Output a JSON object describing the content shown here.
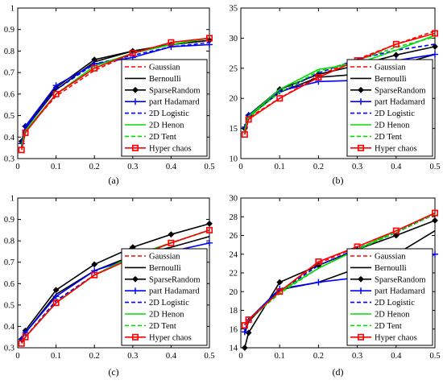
{
  "series_styles": [
    {
      "name": "Gaussian",
      "color": "#ff0000",
      "dash": "5,3",
      "marker": "none"
    },
    {
      "name": "Bernoulli",
      "color": "#000000",
      "dash": "none",
      "marker": "none"
    },
    {
      "name": "SparseRandom",
      "color": "#000000",
      "dash": "none",
      "marker": "diamond"
    },
    {
      "name": "part Hadamard",
      "color": "#0000ff",
      "dash": "none",
      "marker": "plus"
    },
    {
      "name": "2D Logistic",
      "color": "#0000ff",
      "dash": "5,3",
      "marker": "none"
    },
    {
      "name": "2D Henon",
      "color": "#00dd00",
      "dash": "none",
      "marker": "none"
    },
    {
      "name": "2D Tent",
      "color": "#00dd00",
      "dash": "5,3",
      "marker": "none"
    },
    {
      "name": "Hyper chaos",
      "color": "#ff0000",
      "dash": "none",
      "marker": "square"
    }
  ],
  "chart_data": [
    {
      "type": "line",
      "caption": "(a)",
      "x": [
        0.01,
        0.02,
        0.1,
        0.2,
        0.3,
        0.4,
        0.5
      ],
      "xlim": [
        0,
        0.5
      ],
      "ylim": [
        0.3,
        1
      ],
      "xticks": [
        "0",
        "0.1",
        "0.2",
        "0.3",
        "0.4",
        "0.5"
      ],
      "yticks": [
        "0.3",
        "0.4",
        "0.5",
        "0.6",
        "0.7",
        "0.8",
        "0.9",
        "1"
      ],
      "legend": "bottom-right",
      "series": [
        {
          "name": "Gaussian",
          "values": [
            0.36,
            0.43,
            0.59,
            0.71,
            0.79,
            0.83,
            0.86
          ]
        },
        {
          "name": "Bernoulli",
          "values": [
            0.38,
            0.44,
            0.62,
            0.75,
            0.8,
            0.83,
            0.85
          ]
        },
        {
          "name": "SparseRandom",
          "values": [
            0.38,
            0.45,
            0.63,
            0.76,
            0.8,
            0.83,
            0.85
          ]
        },
        {
          "name": "part Hadamard",
          "values": [
            0.37,
            0.45,
            0.64,
            0.74,
            0.77,
            0.82,
            0.83
          ]
        },
        {
          "name": "2D Logistic",
          "values": [
            0.37,
            0.44,
            0.62,
            0.74,
            0.78,
            0.82,
            0.84
          ]
        },
        {
          "name": "2D Henon",
          "values": [
            0.36,
            0.43,
            0.6,
            0.73,
            0.79,
            0.83,
            0.86
          ]
        },
        {
          "name": "2D Tent",
          "values": [
            0.36,
            0.43,
            0.6,
            0.72,
            0.79,
            0.83,
            0.86
          ]
        },
        {
          "name": "Hyper chaos",
          "values": [
            0.34,
            0.42,
            0.6,
            0.72,
            0.79,
            0.84,
            0.86
          ]
        }
      ]
    },
    {
      "type": "line",
      "caption": "(b)",
      "x": [
        0.01,
        0.02,
        0.1,
        0.2,
        0.3,
        0.4,
        0.5
      ],
      "xlim": [
        0,
        0.5
      ],
      "ylim": [
        10,
        35
      ],
      "xticks": [
        "0",
        "0.1",
        "0.2",
        "0.3",
        "0.4",
        "0.5"
      ],
      "yticks": [
        "10",
        "15",
        "20",
        "25",
        "30",
        "35"
      ],
      "legend": "bottom-right",
      "series": [
        {
          "name": "Gaussian",
          "values": [
            14.0,
            16.8,
            20.0,
            23.8,
            26.5,
            29.0,
            31.2
          ]
        },
        {
          "name": "Bernoulli",
          "values": [
            14.8,
            17.0,
            21.0,
            23.5,
            24.0,
            25.5,
            27.3
          ]
        },
        {
          "name": "SparseRandom",
          "values": [
            15.0,
            17.2,
            21.5,
            24.0,
            25.5,
            27.2,
            28.6
          ]
        },
        {
          "name": "part Hadamard",
          "values": [
            15.2,
            17.2,
            21.2,
            22.8,
            23.0,
            26.3,
            27.3
          ]
        },
        {
          "name": "2D Logistic",
          "values": [
            14.8,
            17.0,
            21.0,
            24.2,
            26.5,
            28.0,
            29.0
          ]
        },
        {
          "name": "2D Henon",
          "values": [
            14.8,
            17.0,
            21.5,
            24.8,
            25.8,
            28.0,
            30.5
          ]
        },
        {
          "name": "2D Tent",
          "values": [
            14.5,
            16.8,
            21.0,
            24.5,
            26.3,
            28.5,
            30.2
          ]
        },
        {
          "name": "Hyper chaos",
          "values": [
            14.0,
            16.5,
            20.0,
            23.5,
            26.3,
            29.0,
            30.8
          ]
        }
      ]
    },
    {
      "type": "line",
      "caption": "(c)",
      "x": [
        0.01,
        0.02,
        0.1,
        0.2,
        0.3,
        0.4,
        0.5
      ],
      "xlim": [
        0,
        0.5
      ],
      "ylim": [
        0.3,
        1
      ],
      "xticks": [
        "0",
        "0.1",
        "0.2",
        "0.3",
        "0.4",
        "0.5"
      ],
      "yticks": [
        "0.3",
        "0.4",
        "0.5",
        "0.6",
        "0.7",
        "0.8",
        "0.9",
        "1"
      ],
      "legend": "bottom-right",
      "series": [
        {
          "name": "Gaussian",
          "values": [
            0.33,
            0.35,
            0.52,
            0.64,
            0.73,
            0.79,
            0.85
          ]
        },
        {
          "name": "Bernoulli",
          "values": [
            0.34,
            0.37,
            0.55,
            0.66,
            0.73,
            0.77,
            0.82
          ]
        },
        {
          "name": "SparseRandom",
          "values": [
            0.34,
            0.38,
            0.57,
            0.69,
            0.77,
            0.83,
            0.88
          ]
        },
        {
          "name": "part Hadamard",
          "values": [
            0.34,
            0.37,
            0.54,
            0.66,
            0.72,
            0.75,
            0.79
          ]
        },
        {
          "name": "2D Logistic",
          "values": [
            0.33,
            0.35,
            0.52,
            0.64,
            0.73,
            0.79,
            0.85
          ]
        },
        {
          "name": "2D Henon",
          "values": [
            0.33,
            0.35,
            0.51,
            0.64,
            0.73,
            0.79,
            0.85
          ]
        },
        {
          "name": "2D Tent",
          "values": [
            0.33,
            0.35,
            0.51,
            0.64,
            0.72,
            0.79,
            0.85
          ]
        },
        {
          "name": "Hyper chaos",
          "values": [
            0.32,
            0.35,
            0.51,
            0.64,
            0.72,
            0.79,
            0.85
          ]
        }
      ]
    },
    {
      "type": "line",
      "caption": "(d)",
      "x": [
        0.01,
        0.02,
        0.1,
        0.2,
        0.3,
        0.4,
        0.5
      ],
      "xlim": [
        0,
        0.5
      ],
      "ylim": [
        14,
        30
      ],
      "xticks": [
        "0",
        "0.1",
        "0.2",
        "0.3",
        "0.4",
        "0.5"
      ],
      "yticks": [
        "14",
        "16",
        "18",
        "20",
        "22",
        "24",
        "26",
        "28",
        "30"
      ],
      "legend": "bottom-right",
      "series": [
        {
          "name": "Gaussian",
          "values": [
            16.5,
            17.0,
            20.0,
            23.0,
            24.8,
            26.5,
            28.3
          ]
        },
        {
          "name": "Bernoulli",
          "values": [
            15.5,
            16.8,
            20.2,
            21.0,
            22.5,
            24.0,
            26.5
          ]
        },
        {
          "name": "SparseRandom",
          "values": [
            14.0,
            15.6,
            21.0,
            22.8,
            24.5,
            26.0,
            27.6
          ]
        },
        {
          "name": "part Hadamard",
          "values": [
            15.7,
            17.0,
            20.3,
            21.0,
            21.5,
            22.0,
            24.0
          ]
        },
        {
          "name": "2D Logistic",
          "values": [
            16.4,
            17.0,
            20.0,
            22.8,
            24.6,
            26.3,
            28.3
          ]
        },
        {
          "name": "2D Henon",
          "values": [
            16.4,
            17.0,
            20.0,
            22.5,
            24.5,
            26.5,
            28.4
          ]
        },
        {
          "name": "2D Tent",
          "values": [
            16.4,
            17.0,
            19.8,
            22.5,
            24.5,
            26.3,
            28.3
          ]
        },
        {
          "name": "Hyper chaos",
          "values": [
            16.4,
            17.0,
            20.0,
            23.2,
            24.8,
            26.5,
            28.4
          ]
        }
      ]
    }
  ]
}
